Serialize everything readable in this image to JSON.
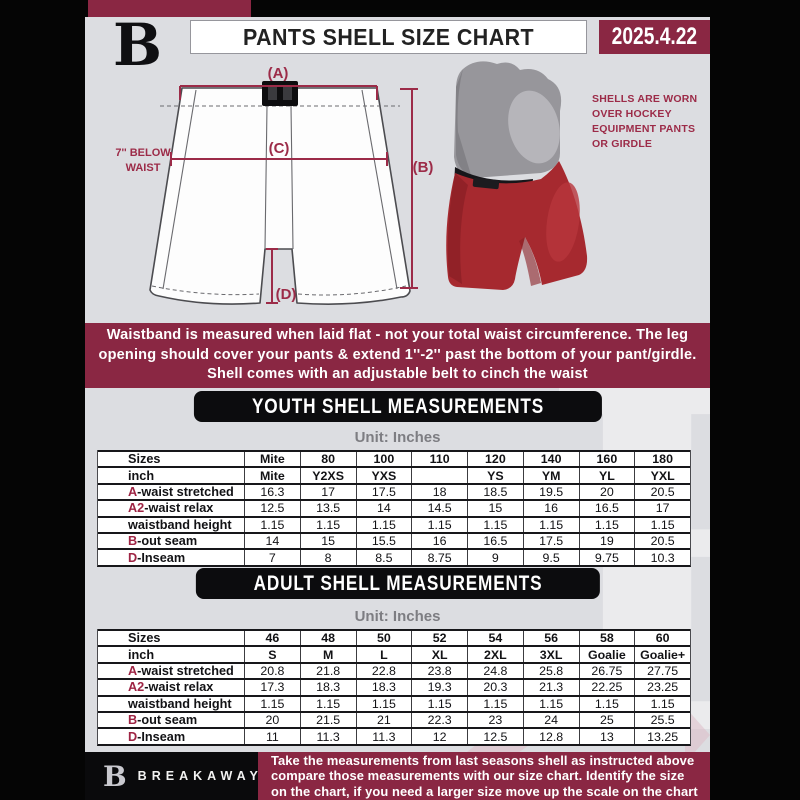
{
  "header": {
    "logo_letter": "B",
    "title": "PANTS SHELL SIZE CHART",
    "date": "2025.4.22"
  },
  "diagram": {
    "labels": {
      "a": "(A)",
      "b": "(B)",
      "c": "(C)",
      "d": "(D)"
    },
    "below_waist": [
      "7'' BELOW",
      "WAIST"
    ],
    "photo_note": [
      "SHELLS ARE WORN",
      "OVER HOCKEY",
      "EQUIPMENT PANTS",
      "OR GIRDLE"
    ]
  },
  "notice": {
    "lines": [
      "Waistband is measured when laid flat - not your total waist circumference. The leg",
      "opening should cover your pants & extend 1''-2'' past the bottom of your pant/girdle.",
      "Shell comes with an adjustable belt to cinch the waist"
    ]
  },
  "youth": {
    "heading": "YOUTH SHELL MEASUREMENTS",
    "unit": "Unit: Inches",
    "table": {
      "rows": [
        {
          "prefix": "",
          "label": "Sizes",
          "header": true,
          "values": [
            "Mite",
            "80",
            "100",
            "110",
            "120",
            "140",
            "160",
            "180"
          ]
        },
        {
          "prefix": "",
          "label": "inch",
          "header": true,
          "values": [
            "Mite",
            "Y2XS",
            "YXS",
            "",
            "YS",
            "YM",
            "YL",
            "YXL"
          ]
        },
        {
          "prefix": "A",
          "label": "-waist stretched",
          "values": [
            "16.3",
            "17",
            "17.5",
            "18",
            "18.5",
            "19.5",
            "20",
            "20.5"
          ]
        },
        {
          "prefix": "A2",
          "label": "-waist relax",
          "values": [
            "12.5",
            "13.5",
            "14",
            "14.5",
            "15",
            "16",
            "16.5",
            "17"
          ]
        },
        {
          "prefix": "",
          "label": "waistband height",
          "values": [
            "1.15",
            "1.15",
            "1.15",
            "1.15",
            "1.15",
            "1.15",
            "1.15",
            "1.15"
          ]
        },
        {
          "prefix": "B",
          "label": "-out seam",
          "values": [
            "14",
            "15",
            "15.5",
            "16",
            "16.5",
            "17.5",
            "19",
            "20.5"
          ]
        },
        {
          "prefix": "D",
          "label": "-Inseam",
          "values": [
            "7",
            "8",
            "8.5",
            "8.75",
            "9",
            "9.5",
            "9.75",
            "10.3"
          ]
        }
      ]
    }
  },
  "adult": {
    "heading": "ADULT SHELL MEASUREMENTS",
    "unit": "Unit: Inches",
    "table": {
      "rows": [
        {
          "prefix": "",
          "label": "Sizes",
          "header": true,
          "values": [
            "46",
            "48",
            "50",
            "52",
            "54",
            "56",
            "58",
            "60"
          ]
        },
        {
          "prefix": "",
          "label": "inch",
          "header": true,
          "values": [
            "S",
            "M",
            "L",
            "XL",
            "2XL",
            "3XL",
            "Goalie",
            "Goalie+"
          ]
        },
        {
          "prefix": "A",
          "label": "-waist stretched",
          "values": [
            "20.8",
            "21.8",
            "22.8",
            "23.8",
            "24.8",
            "25.8",
            "26.75",
            "27.75"
          ]
        },
        {
          "prefix": "A2",
          "label": "-waist relax",
          "values": [
            "17.3",
            "18.3",
            "18.3",
            "19.3",
            "20.3",
            "21.3",
            "22.25",
            "23.25"
          ]
        },
        {
          "prefix": "",
          "label": "waistband height",
          "values": [
            "1.15",
            "1.15",
            "1.15",
            "1.15",
            "1.15",
            "1.15",
            "1.15",
            "1.15"
          ]
        },
        {
          "prefix": "B",
          "label": "-out seam",
          "values": [
            "20",
            "21.5",
            "21",
            "22.3",
            "23",
            "24",
            "25",
            "25.5"
          ]
        },
        {
          "prefix": "D",
          "label": "-Inseam",
          "values": [
            "11",
            "11.3",
            "11.3",
            "12",
            "12.5",
            "12.8",
            "13",
            "13.25"
          ]
        }
      ]
    }
  },
  "watermark": {
    "letter": "B"
  },
  "footer": {
    "logo_letter": "B",
    "brand": "BREAKAWAY",
    "lines": [
      "Take the measurements from last seasons shell as instructed above",
      "compare those measurements  with our size chart. Identify the size",
      "on the chart, if you need a larger size move up the scale on the chart"
    ]
  },
  "colors": {
    "maroon": "#8a2743",
    "accent": "#9c2b48",
    "banner_black": "#0c0c0e"
  }
}
